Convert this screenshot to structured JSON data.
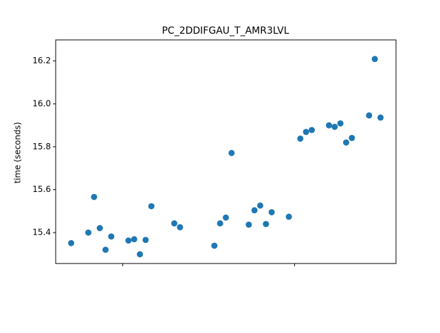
{
  "chart_data": {
    "type": "scatter",
    "title": "PC_2DDIFGAU_T_AMR3LVL",
    "y_label": "time (seconds)",
    "color": "#1f77b4",
    "x": [
      0,
      3,
      4,
      5,
      6,
      7,
      10,
      11,
      12,
      13,
      14,
      18,
      19,
      25,
      26,
      27,
      28,
      31,
      32,
      33,
      34,
      35,
      38,
      40,
      41,
      42,
      45,
      46,
      47,
      48,
      49,
      52,
      53,
      54
    ],
    "values": [
      15.351,
      15.4,
      15.566,
      15.421,
      15.32,
      15.382,
      15.363,
      15.369,
      15.299,
      15.366,
      15.523,
      15.443,
      15.425,
      15.339,
      15.443,
      15.47,
      15.771,
      15.437,
      15.504,
      15.526,
      15.44,
      15.495,
      15.474,
      15.838,
      15.869,
      15.878,
      15.9,
      15.893,
      15.909,
      15.82,
      15.841,
      15.946,
      16.209,
      15.936
    ],
    "xlim": [
      -2.7,
      56.7
    ],
    "xticks": [
      9,
      39
    ],
    "ylim": [
      15.256,
      16.298
    ],
    "yticks": [
      {
        "value": 15.4,
        "label": "15.4"
      },
      {
        "value": 15.6,
        "label": "15.6"
      },
      {
        "value": 15.8,
        "label": "15.8"
      },
      {
        "value": 16.0,
        "label": "16.0"
      },
      {
        "value": 16.2,
        "label": "16.2"
      }
    ]
  }
}
